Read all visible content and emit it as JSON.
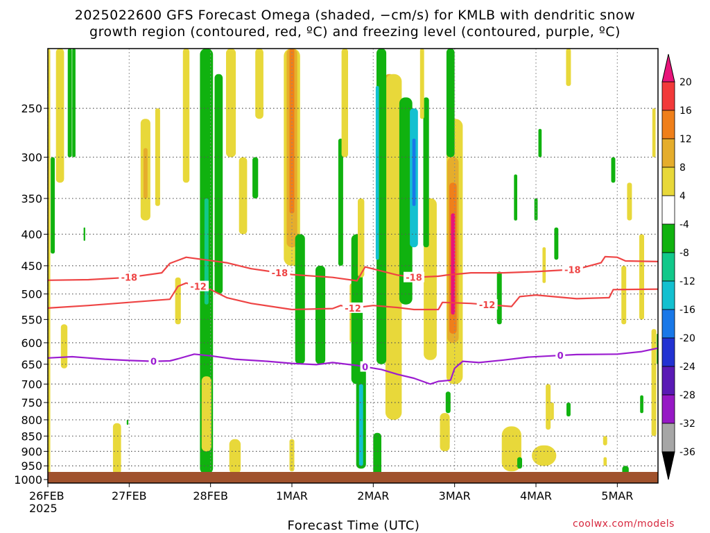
{
  "chart_data": {
    "type": "heatmap",
    "title": "2025022600 GFS Forecast Omega (shaded, −cm/s) for KMLB with dendritic snow",
    "subtitle": "growth region (contoured, red, ºC) and freezing level (contoured, purple, ºC)",
    "xlabel": "Forecast Time (UTC)",
    "ylabel": "",
    "credit": "coolwx.com/models",
    "x_ticks": [
      "26FEB",
      "27FEB",
      "28FEB",
      "1MAR",
      "2MAR",
      "3MAR",
      "4MAR",
      "5MAR"
    ],
    "x_tick_days": [
      0,
      1,
      2,
      3,
      4,
      5,
      6,
      7
    ],
    "x_year": "2025",
    "xlim_days": [
      0,
      7.5
    ],
    "y_ticks": [
      250,
      300,
      350,
      400,
      450,
      500,
      550,
      600,
      650,
      700,
      750,
      800,
      850,
      900,
      950,
      1000
    ],
    "ylim_hpa": [
      200,
      1013
    ],
    "y_scale": "log",
    "grid": true,
    "colorbar": {
      "labels": [
        20,
        16,
        12,
        8,
        4,
        -4,
        -8,
        -12,
        -16,
        -20,
        -24,
        -28,
        -32,
        -36
      ],
      "bins": [
        {
          "color": "#e8147a"
        },
        {
          "color": "#f23a3a"
        },
        {
          "color": "#ef7f1a"
        },
        {
          "color": "#e5ad2c"
        },
        {
          "color": "#e8d83a"
        },
        {
          "color": "#ffffff"
        },
        {
          "color": "#10b20f"
        },
        {
          "color": "#12c88a"
        },
        {
          "color": "#13c0d0"
        },
        {
          "color": "#1978e8"
        },
        {
          "color": "#2232d2"
        },
        {
          "color": "#5a1ab5"
        },
        {
          "color": "#9618c5"
        },
        {
          "color": "#a6a6a6"
        }
      ]
    },
    "contours": [
      {
        "label": "-18",
        "color": "#ee4444",
        "label_days": [
          1.0,
          2.85,
          4.5,
          6.45
        ],
        "points": [
          [
            0.0,
            475
          ],
          [
            0.5,
            474
          ],
          [
            1.0,
            470
          ],
          [
            1.4,
            462
          ],
          [
            1.5,
            446
          ],
          [
            1.7,
            436
          ],
          [
            2.2,
            445
          ],
          [
            2.5,
            455
          ],
          [
            3.0,
            465
          ],
          [
            3.5,
            470
          ],
          [
            3.6,
            472
          ],
          [
            3.8,
            476
          ],
          [
            3.9,
            452
          ],
          [
            4.3,
            466
          ],
          [
            4.5,
            470
          ],
          [
            4.8,
            468
          ],
          [
            4.9,
            466
          ],
          [
            5.2,
            462
          ],
          [
            5.6,
            462
          ],
          [
            6.0,
            460
          ],
          [
            6.5,
            456
          ],
          [
            6.8,
            445
          ],
          [
            6.85,
            435
          ],
          [
            7.0,
            436
          ],
          [
            7.1,
            442
          ],
          [
            7.5,
            443
          ]
        ]
      },
      {
        "label": "-12",
        "color": "#ee4444",
        "label_days": [
          1.85,
          3.75,
          5.4
        ],
        "points": [
          [
            0.0,
            527
          ],
          [
            0.5,
            522
          ],
          [
            1.0,
            516
          ],
          [
            1.5,
            510
          ],
          [
            1.6,
            486
          ],
          [
            1.7,
            480
          ],
          [
            2.0,
            492
          ],
          [
            2.2,
            507
          ],
          [
            2.5,
            518
          ],
          [
            3.0,
            530
          ],
          [
            3.5,
            528
          ],
          [
            3.6,
            522
          ],
          [
            3.75,
            527
          ],
          [
            4.0,
            522
          ],
          [
            4.3,
            526
          ],
          [
            4.5,
            530
          ],
          [
            4.8,
            530
          ],
          [
            4.85,
            516
          ],
          [
            5.2,
            518
          ],
          [
            5.7,
            524
          ],
          [
            5.8,
            505
          ],
          [
            6.0,
            502
          ],
          [
            6.5,
            509
          ],
          [
            6.9,
            507
          ],
          [
            6.95,
            492
          ],
          [
            7.5,
            491
          ]
        ]
      },
      {
        "label": "0",
        "color": "#9b1cd0",
        "label_days": [
          1.3,
          3.9,
          6.3
        ],
        "points": [
          [
            0.0,
            635
          ],
          [
            0.3,
            632
          ],
          [
            0.7,
            638
          ],
          [
            1.0,
            641
          ],
          [
            1.3,
            643
          ],
          [
            1.5,
            642
          ],
          [
            1.6,
            637
          ],
          [
            1.8,
            626
          ],
          [
            2.0,
            630
          ],
          [
            2.3,
            638
          ],
          [
            2.7,
            643
          ],
          [
            3.0,
            648
          ],
          [
            3.3,
            651
          ],
          [
            3.5,
            646
          ],
          [
            3.8,
            653
          ],
          [
            4.1,
            663
          ],
          [
            4.3,
            675
          ],
          [
            4.5,
            685
          ],
          [
            4.7,
            700
          ],
          [
            4.8,
            693
          ],
          [
            4.95,
            690
          ],
          [
            5.0,
            660
          ],
          [
            5.1,
            643
          ],
          [
            5.3,
            646
          ],
          [
            5.6,
            640
          ],
          [
            5.9,
            633
          ],
          [
            6.2,
            630
          ],
          [
            6.5,
            627
          ],
          [
            7.0,
            626
          ],
          [
            7.3,
            620
          ],
          [
            7.5,
            612
          ]
        ]
      }
    ],
    "shading": {
      "units": "-cm/s",
      "patches": [
        {
          "bin": 4,
          "day": 0.0,
          "p": [
            200,
            1000
          ],
          "w": 0.06
        },
        {
          "bin": 4,
          "day": 0.15,
          "p": [
            200,
            330
          ],
          "w": 0.1
        },
        {
          "bin": 6,
          "day": 0.27,
          "p": [
            200,
            300
          ],
          "w": 0.05
        },
        {
          "bin": 6,
          "day": 0.32,
          "p": [
            200,
            300
          ],
          "w": 0.04
        },
        {
          "bin": 6,
          "day": 0.06,
          "p": [
            300,
            430
          ],
          "w": 0.05
        },
        {
          "bin": 4,
          "day": 0.2,
          "p": [
            560,
            660
          ],
          "w": 0.08
        },
        {
          "bin": 4,
          "day": 0.85,
          "p": [
            810,
            980
          ],
          "w": 0.1
        },
        {
          "bin": 4,
          "day": 1.2,
          "p": [
            260,
            380
          ],
          "w": 0.12
        },
        {
          "bin": 3,
          "day": 1.2,
          "p": [
            290,
            350
          ],
          "w": 0.05
        },
        {
          "bin": 4,
          "day": 1.35,
          "p": [
            250,
            360
          ],
          "w": 0.06
        },
        {
          "bin": 4,
          "day": 1.7,
          "p": [
            200,
            330
          ],
          "w": 0.08
        },
        {
          "bin": 4,
          "day": 1.6,
          "p": [
            470,
            560
          ],
          "w": 0.07
        },
        {
          "bin": 6,
          "day": 1.95,
          "p": [
            200,
            980
          ],
          "w": 0.16
        },
        {
          "bin": 7,
          "day": 1.95,
          "p": [
            350,
            520
          ],
          "w": 0.05
        },
        {
          "bin": 6,
          "day": 2.1,
          "p": [
            220,
            500
          ],
          "w": 0.1
        },
        {
          "bin": 4,
          "day": 1.95,
          "p": [
            680,
            900
          ],
          "w": 0.12
        },
        {
          "bin": 4,
          "day": 2.25,
          "p": [
            200,
            300
          ],
          "w": 0.12
        },
        {
          "bin": 4,
          "day": 2.3,
          "p": [
            860,
            980
          ],
          "w": 0.14
        },
        {
          "bin": 4,
          "day": 2.4,
          "p": [
            300,
            400
          ],
          "w": 0.1
        },
        {
          "bin": 6,
          "day": 2.55,
          "p": [
            300,
            350
          ],
          "w": 0.07
        },
        {
          "bin": 4,
          "day": 2.6,
          "p": [
            200,
            260
          ],
          "w": 0.1
        },
        {
          "bin": 4,
          "day": 3.0,
          "p": [
            200,
            450
          ],
          "w": 0.2
        },
        {
          "bin": 3,
          "day": 3.0,
          "p": [
            200,
            420
          ],
          "w": 0.13
        },
        {
          "bin": 2,
          "day": 3.0,
          "p": [
            200,
            370
          ],
          "w": 0.06
        },
        {
          "bin": 6,
          "day": 3.1,
          "p": [
            400,
            650
          ],
          "w": 0.12
        },
        {
          "bin": 4,
          "day": 3.0,
          "p": [
            860,
            970
          ],
          "w": 0.06
        },
        {
          "bin": 6,
          "day": 3.35,
          "p": [
            450,
            650
          ],
          "w": 0.12
        },
        {
          "bin": 6,
          "day": 3.6,
          "p": [
            280,
            450
          ],
          "w": 0.06
        },
        {
          "bin": 4,
          "day": 3.65,
          "p": [
            200,
            300
          ],
          "w": 0.08
        },
        {
          "bin": 4,
          "day": 3.75,
          "p": [
            480,
            600
          ],
          "w": 0.08
        },
        {
          "bin": 6,
          "day": 3.8,
          "p": [
            400,
            700
          ],
          "w": 0.14
        },
        {
          "bin": 4,
          "day": 3.85,
          "p": [
            350,
            470
          ],
          "w": 0.08
        },
        {
          "bin": 6,
          "day": 3.85,
          "p": [
            660,
            960
          ],
          "w": 0.12
        },
        {
          "bin": 8,
          "day": 3.85,
          "p": [
            700,
            950
          ],
          "w": 0.05
        },
        {
          "bin": 3,
          "day": 4.2,
          "p": [
            220,
            530
          ],
          "w": 0.14
        },
        {
          "bin": 2,
          "day": 4.2,
          "p": [
            400,
            520
          ],
          "w": 0.06
        },
        {
          "bin": 4,
          "day": 4.25,
          "p": [
            220,
            800
          ],
          "w": 0.2
        },
        {
          "bin": 6,
          "day": 4.1,
          "p": [
            200,
            650
          ],
          "w": 0.12
        },
        {
          "bin": 8,
          "day": 4.05,
          "p": [
            230,
            440
          ],
          "w": 0.04
        },
        {
          "bin": 6,
          "day": 4.4,
          "p": [
            240,
            520
          ],
          "w": 0.16
        },
        {
          "bin": 8,
          "day": 4.5,
          "p": [
            250,
            420
          ],
          "w": 0.1
        },
        {
          "bin": 9,
          "day": 4.5,
          "p": [
            280,
            360
          ],
          "w": 0.04
        },
        {
          "bin": 6,
          "day": 4.05,
          "p": [
            840,
            990
          ],
          "w": 0.1
        },
        {
          "bin": 4,
          "day": 4.7,
          "p": [
            350,
            640
          ],
          "w": 0.16
        },
        {
          "bin": 6,
          "day": 4.65,
          "p": [
            240,
            420
          ],
          "w": 0.07
        },
        {
          "bin": 4,
          "day": 4.6,
          "p": [
            200,
            260
          ],
          "w": 0.05
        },
        {
          "bin": 4,
          "day": 5.0,
          "p": [
            260,
            700
          ],
          "w": 0.2
        },
        {
          "bin": 3,
          "day": 4.98,
          "p": [
            300,
            600
          ],
          "w": 0.14
        },
        {
          "bin": 2,
          "day": 4.98,
          "p": [
            330,
            580
          ],
          "w": 0.09
        },
        {
          "bin": 0,
          "day": 4.98,
          "p": [
            370,
            540
          ],
          "w": 0.05
        },
        {
          "bin": 6,
          "day": 4.95,
          "p": [
            200,
            300
          ],
          "w": 0.1
        },
        {
          "bin": 6,
          "day": 4.92,
          "p": [
            720,
            780
          ],
          "w": 0.06
        },
        {
          "bin": 3,
          "day": 4.9,
          "p": [
            810,
            880
          ],
          "w": 0.08
        },
        {
          "bin": 4,
          "day": 4.88,
          "p": [
            780,
            900
          ],
          "w": 0.12
        },
        {
          "bin": 4,
          "day": 5.7,
          "p": [
            820,
            970
          ],
          "w": 0.24
        },
        {
          "bin": 4,
          "day": 6.1,
          "p": [
            880,
            950
          ],
          "w": 0.3
        },
        {
          "bin": 6,
          "day": 5.8,
          "p": [
            920,
            960
          ],
          "w": 0.06
        },
        {
          "bin": 6,
          "day": 5.55,
          "p": [
            460,
            560
          ],
          "w": 0.06
        },
        {
          "bin": 6,
          "day": 5.75,
          "p": [
            320,
            380
          ],
          "w": 0.04
        },
        {
          "bin": 6,
          "day": 6.0,
          "p": [
            350,
            380
          ],
          "w": 0.04
        },
        {
          "bin": 6,
          "day": 6.05,
          "p": [
            270,
            300
          ],
          "w": 0.04
        },
        {
          "bin": 6,
          "day": 6.25,
          "p": [
            390,
            440
          ],
          "w": 0.05
        },
        {
          "bin": 4,
          "day": 6.4,
          "p": [
            200,
            230
          ],
          "w": 0.06
        },
        {
          "bin": 4,
          "day": 6.1,
          "p": [
            420,
            480
          ],
          "w": 0.04
        },
        {
          "bin": 4,
          "day": 6.15,
          "p": [
            700,
            830
          ],
          "w": 0.06
        },
        {
          "bin": 6,
          "day": 6.4,
          "p": [
            750,
            790
          ],
          "w": 0.05
        },
        {
          "bin": 4,
          "day": 6.2,
          "p": [
            750,
            800
          ],
          "w": 0.04
        },
        {
          "bin": 6,
          "day": 6.95,
          "p": [
            300,
            330
          ],
          "w": 0.05
        },
        {
          "bin": 4,
          "day": 6.85,
          "p": [
            850,
            880
          ],
          "w": 0.05
        },
        {
          "bin": 4,
          "day": 6.85,
          "p": [
            920,
            950
          ],
          "w": 0.04
        },
        {
          "bin": 4,
          "day": 7.08,
          "p": [
            450,
            560
          ],
          "w": 0.06
        },
        {
          "bin": 4,
          "day": 7.15,
          "p": [
            330,
            380
          ],
          "w": 0.06
        },
        {
          "bin": 4,
          "day": 7.3,
          "p": [
            400,
            550
          ],
          "w": 0.06
        },
        {
          "bin": 6,
          "day": 7.1,
          "p": [
            950,
            990
          ],
          "w": 0.08
        },
        {
          "bin": 6,
          "day": 7.3,
          "p": [
            730,
            780
          ],
          "w": 0.04
        },
        {
          "bin": 4,
          "day": 7.45,
          "p": [
            570,
            850
          ],
          "w": 0.06
        },
        {
          "bin": 4,
          "day": 7.45,
          "p": [
            250,
            300
          ],
          "w": 0.04
        },
        {
          "bin": 6,
          "day": 7.5,
          "p": [
            580,
            650
          ],
          "w": 0.03
        },
        {
          "bin": 6,
          "day": 0.45,
          "p": [
            390,
            410
          ],
          "w": 0.02
        },
        {
          "bin": 6,
          "day": 0.98,
          "p": [
            800,
            815
          ],
          "w": 0.02
        }
      ]
    }
  }
}
